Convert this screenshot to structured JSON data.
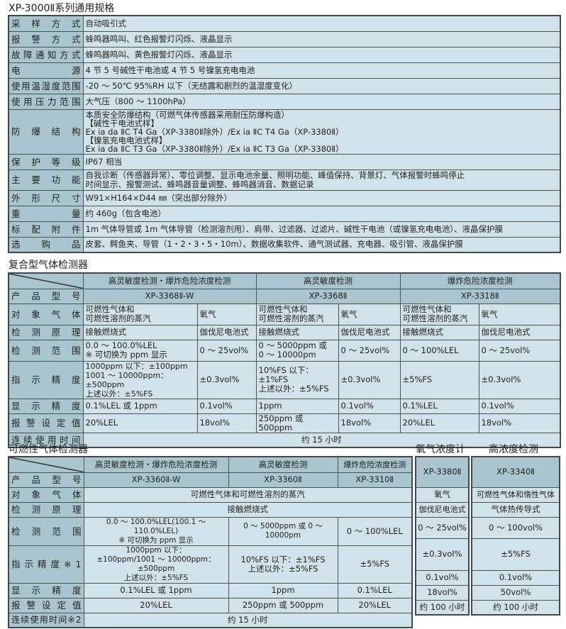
{
  "general": {
    "title": "XP-3000Ⅱ系列通用规格",
    "rows": [
      {
        "label": "采样方式",
        "value": "自动吸引式"
      },
      {
        "label": "报警方式",
        "value": "蜂鸣器鸣叫、红色报警灯闪烁、液晶显示"
      },
      {
        "label": "故障通知方式",
        "value": "蜂鸣器鸣叫、黄色报警灯闪烁、液晶显示"
      },
      {
        "label": "电源",
        "value": "4 节 5 号碱性干电池或 4 节 5 号镍氢充电电池"
      },
      {
        "label": "使用温湿度范围",
        "value": "-20 ～ 50℃ 95%RH 以下（无结露和剧烈的温湿度变化）"
      },
      {
        "label": "使用压力范围",
        "value": "大气压（800 ～ 1100hPa）"
      },
      {
        "label": "防爆结构",
        "value": "本质安全防爆结构（可燃气体传感器采用耐压防爆构造）\n【碱性干电池式样】\nEx ia da ⅡC T4 Ga（XP-3380Ⅱ除外）/Ex ia ⅡC T4 Ga（XP-3380Ⅱ）\n【镍氢充电电池式样】\nEx ia da ⅡC T3 Ga（XP-3380Ⅱ除外）/Ex ia ⅡC T3 Ga（XP-3380Ⅱ）"
      },
      {
        "label": "保护等级",
        "value": "IP67 相当"
      },
      {
        "label": "主要功能",
        "value": "自我诊断（传感器异常）、零位调整、显示电池余量、照明功能、峰值保持、背景灯、气体报警时蜂鸣停止\n时间显示、报警测试、蜂鸣器音量调整、蜂鸣器消音、数据记录"
      },
      {
        "label": "外形尺寸",
        "value": "W91×H164×D44 ㎜（突出部分除外）"
      },
      {
        "label": "重量",
        "value": "约 460g（包含电池）"
      },
      {
        "label": "标配附件",
        "value": "1m 气体导管或 1m 气体导管（检测溶剂用）、肩带、过滤器、过滤片、碱性干电池（或镍氢充电电池）、液晶保护膜"
      },
      {
        "label": "选购品",
        "value": "皮套、鳄鱼夹、导管（1・2・3・5・10m）、数据收集软件、通气测试器、充电器、吸引管、液晶保护膜"
      }
    ]
  },
  "composite": {
    "title": "复合型气体检测器",
    "headers": [
      "高灵敏度检测・爆炸危险浓度检测",
      "高灵敏度检测",
      "爆炸危险浓度检测"
    ],
    "labels": {
      "model": "产品型号",
      "gas": "对象气体",
      "principle": "检测原理",
      "range": "检测范围",
      "accuracy": "指示精度",
      "resolution": "显示精度",
      "alarm": "报警设定值",
      "runtime": "连续使用时间"
    },
    "models": [
      "XP-3368Ⅱ-W",
      "XP-3368Ⅱ",
      "XP-3318Ⅱ"
    ],
    "gas": [
      "可燃性气体和\n可燃性溶剂的蒸汽",
      "氧气",
      "可燃性气体和\n可燃性溶剂的蒸汽",
      "氧气",
      "可燃性气体和\n可燃性溶剂的蒸汽",
      "氧气"
    ],
    "principle": [
      "接触燃烧式",
      "伽伐尼电池式",
      "接触燃烧式",
      "伽伐尼电池式",
      "接触燃烧式",
      "伽伐尼电池式"
    ],
    "range": [
      "0.0 ～ 100.0%LEL\n※ 可切换为 ppm 显示",
      "0 ～ 25vol%",
      "0 ～ 5000ppm 或\n0 ～ 10000pm",
      "0 ～ 25vol%",
      "0 ～ 100%LEL",
      "0 ～ 25vol%"
    ],
    "accuracy": [
      "1000ppm 以下：±100ppm\n1001 ～ 10000ppm：±500ppm\n上述以外：±5%FS",
      "±0.3vol%",
      "10%FS 以下：±1%FS\n上述以外：±5%FS",
      "±0.3vol%",
      "±5%FS",
      "±0.3vol%"
    ],
    "resolution": [
      "0.1%LEL 或 1ppm",
      "0.1vol%",
      "1ppm",
      "0.1vol%",
      "0.1%LEL",
      "0.1vol%"
    ],
    "alarm": [
      "20%LEL",
      "18vol%",
      "250ppm 或 500ppm",
      "18vol%",
      "20%LEL",
      "18vol%"
    ],
    "runtime": "约 15 小时"
  },
  "combustible": {
    "title": "可燃性气体检测器",
    "headers": [
      "高灵敏度检测・爆炸危险浓度检测",
      "高灵敏度检测",
      "爆炸危险浓度检测"
    ],
    "labels": {
      "model": "产品型号",
      "gas": "对象气体",
      "principle": "检测原理",
      "range": "检测范围",
      "accuracy": "指示精度※1",
      "resolution": "显示精度",
      "alarm": "报警设定值",
      "runtime": "连续使用时间※2"
    },
    "models": [
      "XP-3360Ⅱ-W",
      "XP-3360Ⅱ",
      "XP-3310Ⅱ"
    ],
    "gas": "可燃性气体和可燃性溶剂的蒸汽",
    "principle": "接触燃烧式",
    "range": [
      "0.0 ～ 100.0%LEL(100.1 ～ 110.0%LEL)\n※ 可切换为 ppm 显示",
      "0 ～ 5000ppm 或 0 ～ 10000pm",
      "0 ～ 100%LEL"
    ],
    "accuracy": [
      "1000ppm 以下：\n±100ppm/1001 ～ 10000ppm：±500ppm\n上述以外：±5%FS",
      "10%FS 以下：±1%FS\n上述以外：±5%FS",
      "±5%FS"
    ],
    "resolution": [
      "0.1%LEL 或 1ppm",
      "1ppm",
      "0.1%LEL"
    ],
    "alarm": [
      "20%LEL",
      "250ppm 或 500ppm",
      "20%LEL"
    ],
    "runtime": "约 15 小时"
  },
  "oxygen": {
    "title": "氧气浓度计",
    "model": "XP-3380Ⅱ",
    "gas": "氧气",
    "principle": "伽伐尼电池式",
    "range": "0 ～ 25vol%",
    "accuracy": "±0.3vol%",
    "resolution": "0.1vol%",
    "alarm": "18vol%",
    "runtime": "约 100 小时"
  },
  "high_conc": {
    "title": "高浓度检测",
    "model": "XP-3340Ⅱ",
    "gas": "可燃性气体和惰性气体",
    "principle": "气体热传导式",
    "range": "0 ～ 100vol%",
    "accuracy": "±5%FS",
    "resolution": "0.1vol%",
    "alarm": "50vol%",
    "runtime": "约 100 小时"
  },
  "colors": {
    "label_bg": "#a9c5cd",
    "value_bg": "#d1e3e8",
    "border": "#3e4a4e"
  }
}
